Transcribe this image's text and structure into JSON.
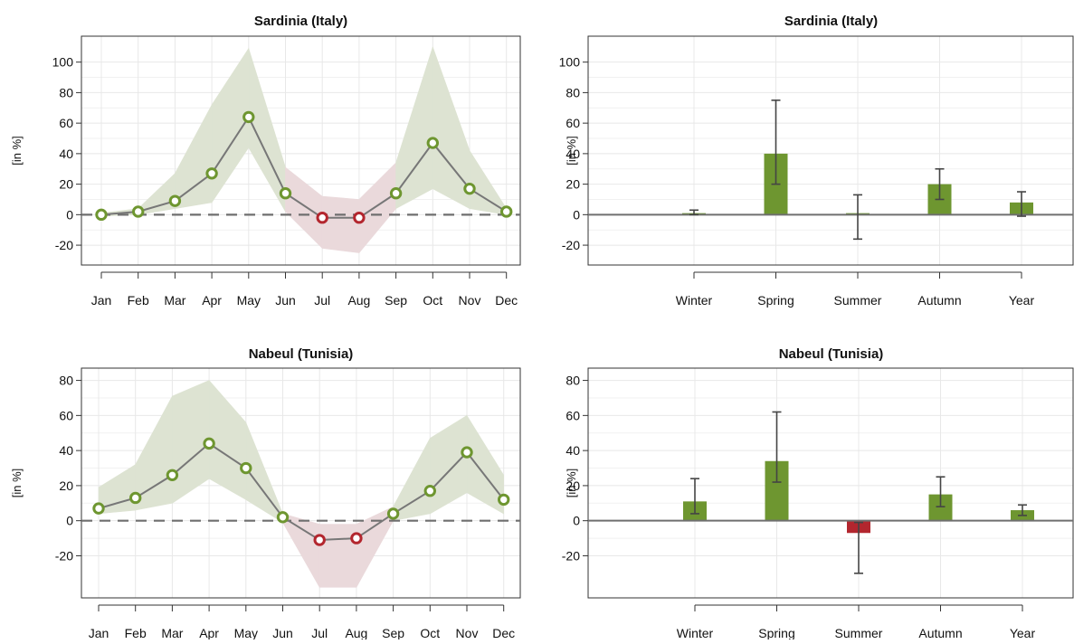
{
  "colors": {
    "positive": "#6e9630",
    "negative": "#b3262e",
    "band_positive": "#dde3d2",
    "band_negative": "#ead9db",
    "line": "#777777",
    "grid": "#e8e8e8",
    "zero": "#6f6f6f",
    "errorbar": "#444444"
  },
  "chart_data": [
    {
      "type": "line",
      "title": "Sardinia (Italy)",
      "ylabel": "[in %]",
      "xlabel": "",
      "ylim": [
        -33,
        117
      ],
      "yticks": [
        -20,
        0,
        20,
        40,
        60,
        80,
        100
      ],
      "categories": [
        "Jan",
        "Feb",
        "Mar",
        "Apr",
        "May",
        "Jun",
        "Jul",
        "Aug",
        "Sep",
        "Oct",
        "Nov",
        "Dec"
      ],
      "values": [
        0,
        2,
        9,
        27,
        64,
        14,
        -2,
        -2,
        14,
        47,
        17,
        2
      ],
      "upper": [
        1,
        4,
        27,
        72,
        109,
        31,
        12,
        10,
        34,
        110,
        42,
        4
      ],
      "lower": [
        -1,
        0,
        4,
        8,
        44,
        2,
        -22,
        -25,
        4,
        17,
        4,
        0
      ],
      "zero_line": "dashed",
      "grid": true
    },
    {
      "type": "bar",
      "title": "Sardinia (Italy)",
      "ylabel": "[in %]",
      "xlabel": "",
      "ylim": [
        -33,
        117
      ],
      "yticks": [
        -20,
        0,
        20,
        40,
        60,
        80,
        100
      ],
      "categories": [
        "Winter",
        "Spring",
        "Summer",
        "Autumn",
        "Year"
      ],
      "values": [
        1,
        40,
        1,
        20,
        8
      ],
      "error_low": [
        0,
        20,
        -16,
        10,
        -1
      ],
      "error_high": [
        3,
        75,
        13,
        30,
        15
      ],
      "grid": true
    },
    {
      "type": "line",
      "title": "Nabeul (Tunisia)",
      "ylabel": "[in %]",
      "xlabel": "",
      "ylim": [
        -44,
        87
      ],
      "yticks": [
        -20,
        0,
        20,
        40,
        60,
        80
      ],
      "categories": [
        "Jan",
        "Feb",
        "Mar",
        "Apr",
        "May",
        "Jun",
        "Jul",
        "Aug",
        "Sep",
        "Oct",
        "Nov",
        "Dec"
      ],
      "values": [
        7,
        13,
        26,
        44,
        30,
        2,
        -11,
        -10,
        4,
        17,
        39,
        12
      ],
      "upper": [
        19,
        32,
        71,
        80,
        56,
        4,
        -2,
        -2,
        8,
        47,
        60,
        26
      ],
      "lower": [
        4,
        6,
        10,
        24,
        12,
        -1,
        -38,
        -38,
        0,
        4,
        16,
        4
      ],
      "zero_line": "dashed",
      "grid": true
    },
    {
      "type": "bar",
      "title": "Nabeul (Tunisia)",
      "ylabel": "[in %]",
      "xlabel": "",
      "ylim": [
        -44,
        87
      ],
      "yticks": [
        -20,
        0,
        20,
        40,
        60,
        80
      ],
      "categories": [
        "Winter",
        "Spring",
        "Summer",
        "Autumn",
        "Year"
      ],
      "values": [
        11,
        34,
        -7,
        15,
        6
      ],
      "error_low": [
        4,
        22,
        -30,
        8,
        3
      ],
      "error_high": [
        24,
        62,
        -1,
        25,
        9
      ],
      "grid": true
    }
  ]
}
